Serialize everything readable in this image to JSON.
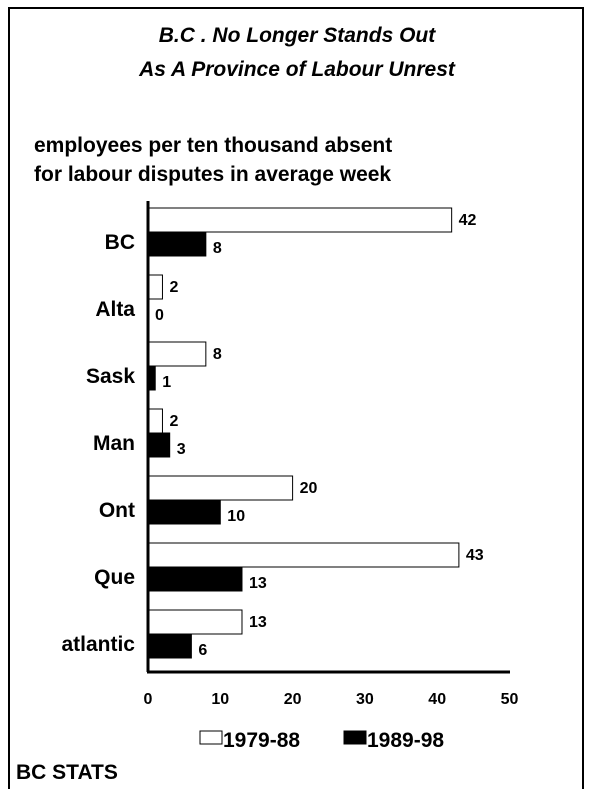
{
  "chart_data": {
    "type": "bar",
    "orientation": "horizontal",
    "title": [
      "B.C . No Longer Stands Out",
      "As A Province of Labour Unrest"
    ],
    "subtitle": [
      "employees per ten thousand absent",
      "for labour disputes in average week"
    ],
    "categories": [
      "BC",
      "Alta",
      "Sask",
      "Man",
      "Ont",
      "Que",
      "atlantic"
    ],
    "series": [
      {
        "name": "1979-88",
        "color": "#ffffff",
        "values": [
          42,
          2,
          8,
          2,
          20,
          43,
          13
        ]
      },
      {
        "name": "1989-98",
        "color": "#000000",
        "values": [
          8,
          0,
          1,
          3,
          10,
          13,
          6
        ]
      }
    ],
    "x_ticks": [
      0,
      10,
      20,
      30,
      40,
      50
    ],
    "xlim": [
      0,
      50
    ],
    "legend_position": "bottom",
    "grid": false
  },
  "footer": "BC STATS"
}
